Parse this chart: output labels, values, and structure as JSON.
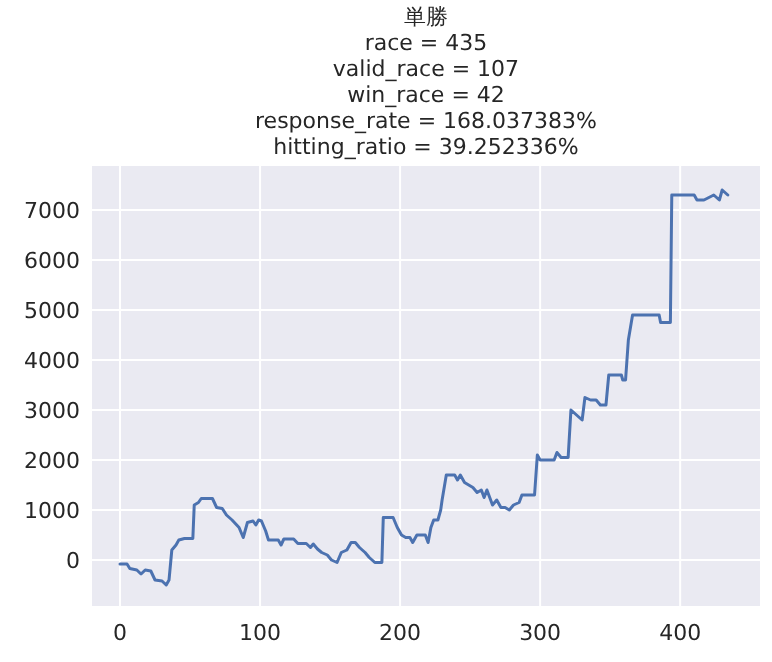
{
  "chart_data": {
    "type": "line",
    "title": "単勝",
    "subtitle": "race = 435\nvalid_race = 107\nwin_race = 42\nresponse_rate = 168.037383%\nhitting_ratio = 39.252336%",
    "x": [
      0,
      5,
      7,
      12,
      15,
      18,
      22,
      25,
      30,
      33,
      35,
      37,
      40,
      42,
      46,
      52,
      53,
      56,
      58,
      66,
      69,
      73,
      76,
      80,
      85,
      88,
      91,
      95,
      97,
      99,
      101,
      104,
      106,
      113,
      115,
      117,
      124,
      127,
      133,
      136,
      138,
      141,
      144,
      148,
      151,
      155,
      158,
      162,
      165,
      168,
      171,
      175,
      178,
      182,
      187,
      188,
      195,
      198,
      201,
      204,
      207,
      209,
      212,
      218,
      220,
      222,
      224,
      227,
      229,
      230,
      233,
      239,
      241,
      243,
      246,
      252,
      255,
      258,
      260,
      262,
      266,
      269,
      272,
      275,
      278,
      281,
      285,
      287,
      296,
      298,
      300,
      310,
      312,
      315,
      320,
      322,
      326,
      330,
      332,
      336,
      340,
      343,
      347,
      349,
      358,
      359,
      361,
      363,
      366,
      385,
      386,
      393,
      394,
      410,
      412,
      417,
      424,
      428,
      430,
      434
    ],
    "values": [
      -80,
      -80,
      -170,
      -200,
      -280,
      -200,
      -220,
      -400,
      -420,
      -500,
      -400,
      200,
      300,
      400,
      430,
      430,
      1100,
      1150,
      1230,
      1230,
      1050,
      1030,
      900,
      800,
      650,
      450,
      750,
      780,
      700,
      800,
      780,
      580,
      400,
      400,
      300,
      420,
      420,
      330,
      330,
      250,
      320,
      220,
      150,
      100,
      0,
      -50,
      150,
      200,
      350,
      350,
      250,
      150,
      50,
      -50,
      -50,
      850,
      850,
      650,
      500,
      450,
      450,
      350,
      500,
      500,
      350,
      650,
      800,
      800,
      1000,
      1200,
      1700,
      1700,
      1600,
      1700,
      1550,
      1450,
      1350,
      1400,
      1250,
      1400,
      1100,
      1200,
      1050,
      1050,
      1000,
      1100,
      1150,
      1300,
      1300,
      2100,
      2000,
      2000,
      2150,
      2050,
      2050,
      3000,
      2900,
      2800,
      3250,
      3200,
      3200,
      3100,
      3100,
      3700,
      3700,
      3600,
      3600,
      4400,
      4900,
      4900,
      4750,
      4750,
      7300,
      7300,
      7200,
      7200,
      7300,
      7200,
      7400,
      7300
    ],
    "color": "#4c72b0",
    "xlim": [
      -20,
      457
    ],
    "ylim": [
      -920,
      7880
    ],
    "xticks": [
      0,
      100,
      200,
      300,
      400
    ],
    "yticks": [
      0,
      1000,
      2000,
      3000,
      4000,
      5000,
      6000,
      7000
    ],
    "grid": true
  }
}
